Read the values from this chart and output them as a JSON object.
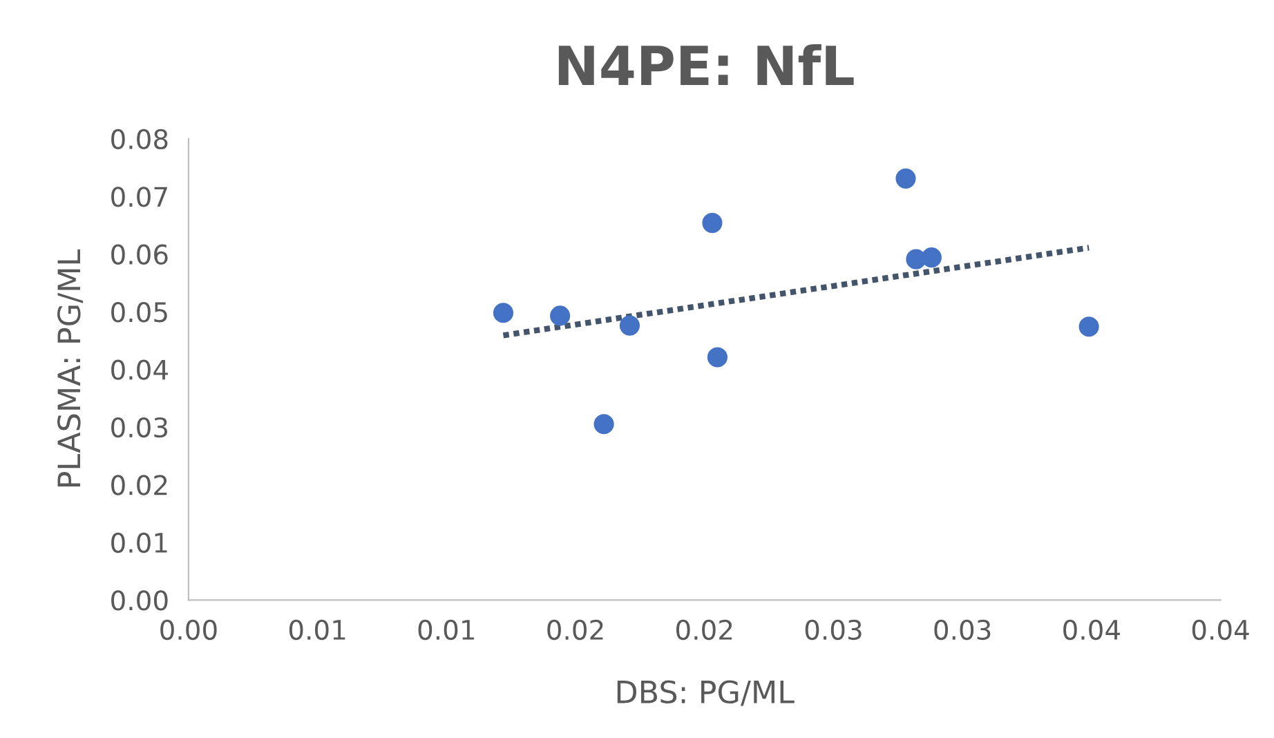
{
  "chart_data": {
    "type": "scatter",
    "title": "N4PE: NfL",
    "xlabel": "DBS: PG/ML",
    "ylabel": "PLASMA: PG/ML",
    "xlim": [
      0,
      0.04
    ],
    "ylim": [
      0,
      0.08
    ],
    "xticks": [
      {
        "value": 0,
        "label": "0.00"
      },
      {
        "value": 0.005,
        "label": "0.01"
      },
      {
        "value": 0.01,
        "label": "0.01"
      },
      {
        "value": 0.015,
        "label": "0.02"
      },
      {
        "value": 0.02,
        "label": "0.02"
      },
      {
        "value": 0.025,
        "label": "0.03"
      },
      {
        "value": 0.03,
        "label": "0.03"
      },
      {
        "value": 0.035,
        "label": "0.04"
      },
      {
        "value": 0.04,
        "label": "0.04"
      }
    ],
    "yticks": [
      {
        "value": 0,
        "label": "0.00"
      },
      {
        "value": 0.01,
        "label": "0.01"
      },
      {
        "value": 0.02,
        "label": "0.02"
      },
      {
        "value": 0.03,
        "label": "0.03"
      },
      {
        "value": 0.04,
        "label": "0.04"
      },
      {
        "value": 0.05,
        "label": "0.05"
      },
      {
        "value": 0.06,
        "label": "0.06"
      },
      {
        "value": 0.07,
        "label": "0.07"
      },
      {
        "value": 0.08,
        "label": "0.08"
      }
    ],
    "grid": false,
    "legend": false,
    "series": [
      {
        "color": "#4472c4",
        "marker": "circle",
        "x": [
          0.0122,
          0.0144,
          0.0171,
          0.0161,
          0.0203,
          0.0205,
          0.0278,
          0.0282,
          0.0288,
          0.0349
        ],
        "values": [
          0.0498,
          0.0493,
          0.0476,
          0.0305,
          0.0654,
          0.0421,
          0.0731,
          0.0591,
          0.0594,
          0.0474
        ]
      },
      {
        "type": "line",
        "color": "#44546a",
        "line_style": "dotted",
        "marker": "none",
        "x": [
          0.0122,
          0.0349
        ],
        "values": [
          0.0459,
          0.0611
        ]
      }
    ]
  }
}
